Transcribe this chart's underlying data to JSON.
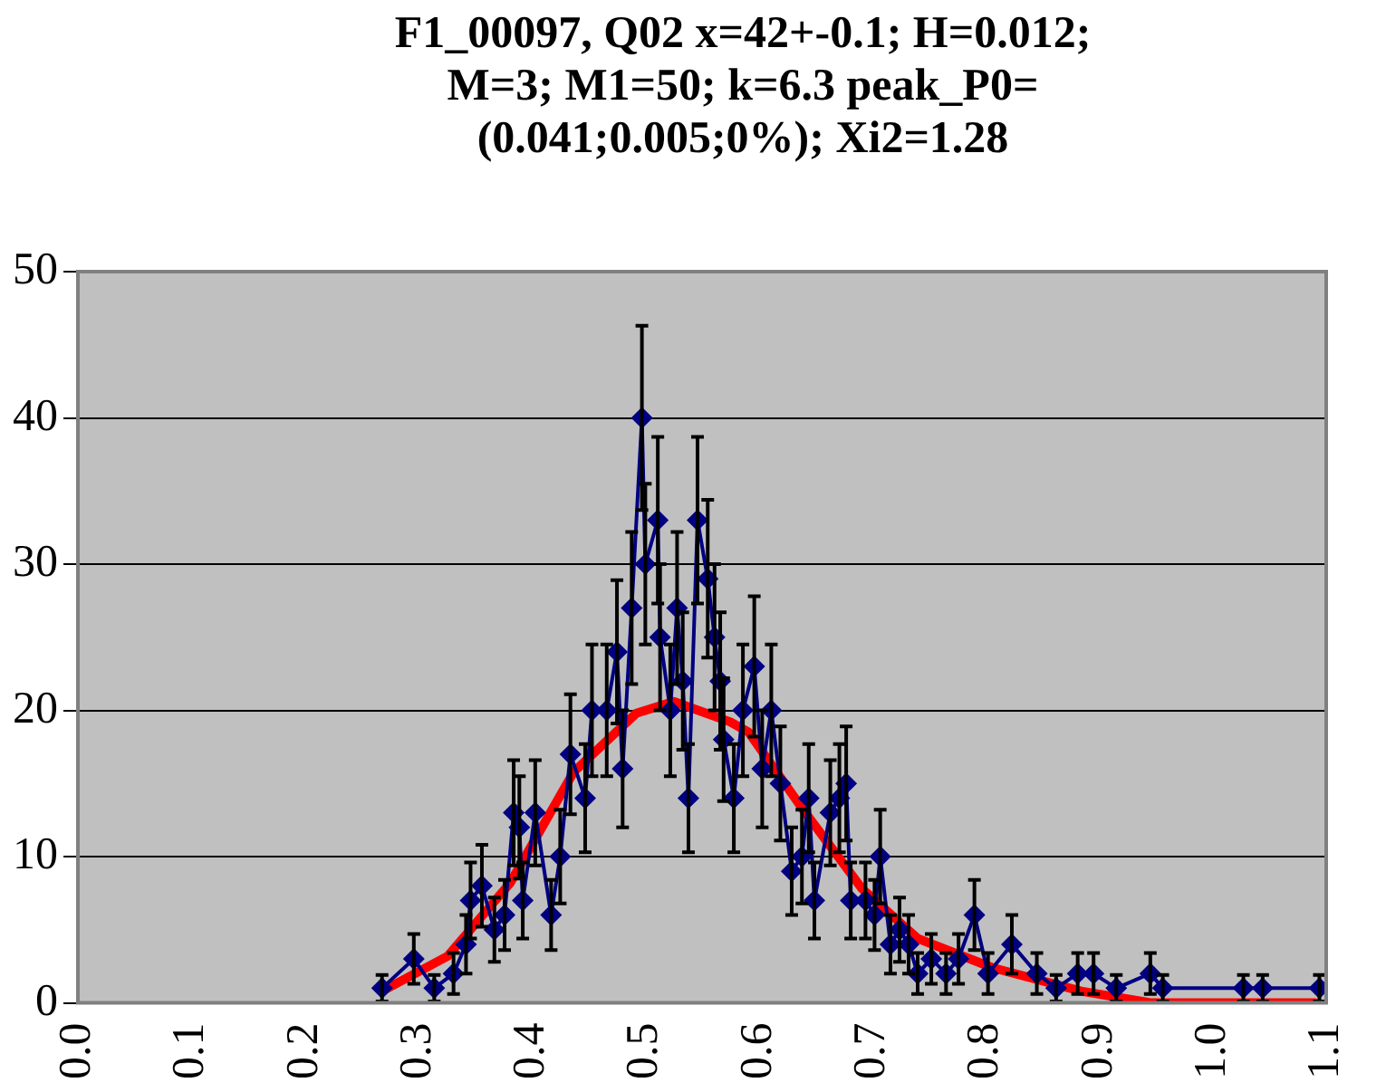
{
  "chart_data": {
    "type": "line",
    "title": "F1_00097, Q02 x=42+-0.1; H=0.012; M=3; M1=50; k=6.3 peak_P0=(0.041;0.005;0%); Xi2=1.28",
    "xlim": [
      0,
      1.1
    ],
    "xticks": [
      {
        "value": 0,
        "label": "0.0"
      },
      {
        "value": 0.1,
        "label": "0.1"
      },
      {
        "value": 0.2,
        "label": "0.2"
      },
      {
        "value": 0.3,
        "label": "0.3"
      },
      {
        "value": 0.4,
        "label": "0.4"
      },
      {
        "value": 0.5,
        "label": "0.5"
      },
      {
        "value": 0.6,
        "label": "0.6"
      },
      {
        "value": 0.7,
        "label": "0.7"
      },
      {
        "value": 0.8,
        "label": "0.8"
      },
      {
        "value": 0.9,
        "label": "0.9"
      },
      {
        "value": 1,
        "label": "1.0"
      },
      {
        "value": 1.1,
        "label": "1.1"
      }
    ],
    "ylim": [
      0,
      50
    ],
    "yticks": [
      0,
      10,
      20,
      30,
      40,
      50
    ],
    "grid": "y",
    "legend": false,
    "series": [
      {
        "color": "#000080",
        "marker": "diamond",
        "line_style": "solid",
        "x": [
          0.268,
          0.296,
          0.314,
          0.331,
          0.342,
          0.346,
          0.356,
          0.367,
          0.376,
          0.384,
          0.389,
          0.392,
          0.403,
          0.417,
          0.425,
          0.434,
          0.447,
          0.453,
          0.466,
          0.475,
          0.48,
          0.488,
          0.497,
          0.5,
          0.511,
          0.513,
          0.522,
          0.528,
          0.533,
          0.538,
          0.546,
          0.555,
          0.561,
          0.566,
          0.569,
          0.578,
          0.586,
          0.596,
          0.603,
          0.611,
          0.619,
          0.629,
          0.638,
          0.644,
          0.649,
          0.663,
          0.671,
          0.677,
          0.681,
          0.694,
          0.702,
          0.707,
          0.716,
          0.724,
          0.732,
          0.74,
          0.752,
          0.765,
          0.776,
          0.79,
          0.802,
          0.823,
          0.845,
          0.862,
          0.881,
          0.895,
          0.915,
          0.945,
          0.956,
          1.027,
          1.044,
          1.094
        ],
        "values": [
          1,
          3,
          1,
          2,
          4,
          7,
          8,
          5,
          6,
          13,
          12,
          7,
          13,
          6,
          10,
          17,
          14,
          20,
          20,
          24,
          16,
          27,
          40,
          30,
          33,
          25,
          20,
          27,
          22,
          14,
          33,
          29,
          25,
          22,
          18,
          14,
          20,
          23,
          16,
          20,
          15,
          9,
          10,
          14,
          7,
          13,
          14,
          15,
          7,
          7,
          6,
          10,
          4,
          5,
          4,
          2,
          3,
          2,
          3,
          6,
          2,
          4,
          2,
          1,
          2,
          2,
          1,
          2,
          1,
          1,
          1,
          1
        ],
        "errors": [
          0.9,
          1.7,
          0.9,
          1.4,
          2,
          2.6,
          2.8,
          2.2,
          2.4,
          3.6,
          3.5,
          2.6,
          3.6,
          2.4,
          3.2,
          4.1,
          3.7,
          4.5,
          4.5,
          4.9,
          4,
          5.2,
          6.3,
          5.5,
          5.7,
          5,
          4.5,
          5.2,
          4.7,
          3.7,
          5.7,
          5.4,
          5,
          4.7,
          4.2,
          3.7,
          4.5,
          4.8,
          4,
          4.5,
          3.9,
          3,
          3.2,
          3.7,
          2.6,
          3.6,
          3.7,
          3.9,
          2.6,
          2.6,
          2.4,
          3.2,
          2,
          2.2,
          2,
          1.4,
          1.7,
          1.4,
          1.7,
          2.4,
          1.4,
          2,
          1.4,
          0.9,
          1.4,
          1.4,
          0.9,
          1.4,
          0.9,
          0.9,
          0.9,
          0.9
        ]
      },
      {
        "type": "line",
        "color": "#ff0000",
        "marker": "none",
        "line_style": "solid",
        "x": [
          0.268,
          0.326,
          0.381,
          0.437,
          0.492,
          0.525,
          0.575,
          0.591,
          0.641,
          0.691,
          0.74,
          0.806,
          0.884,
          0.945,
          1.09
        ],
        "values": [
          0.8,
          3.2,
          8.2,
          15.8,
          19.8,
          20.6,
          19.2,
          18.5,
          13,
          7.8,
          4.4,
          2.4,
          0.8,
          0,
          0
        ]
      }
    ]
  }
}
